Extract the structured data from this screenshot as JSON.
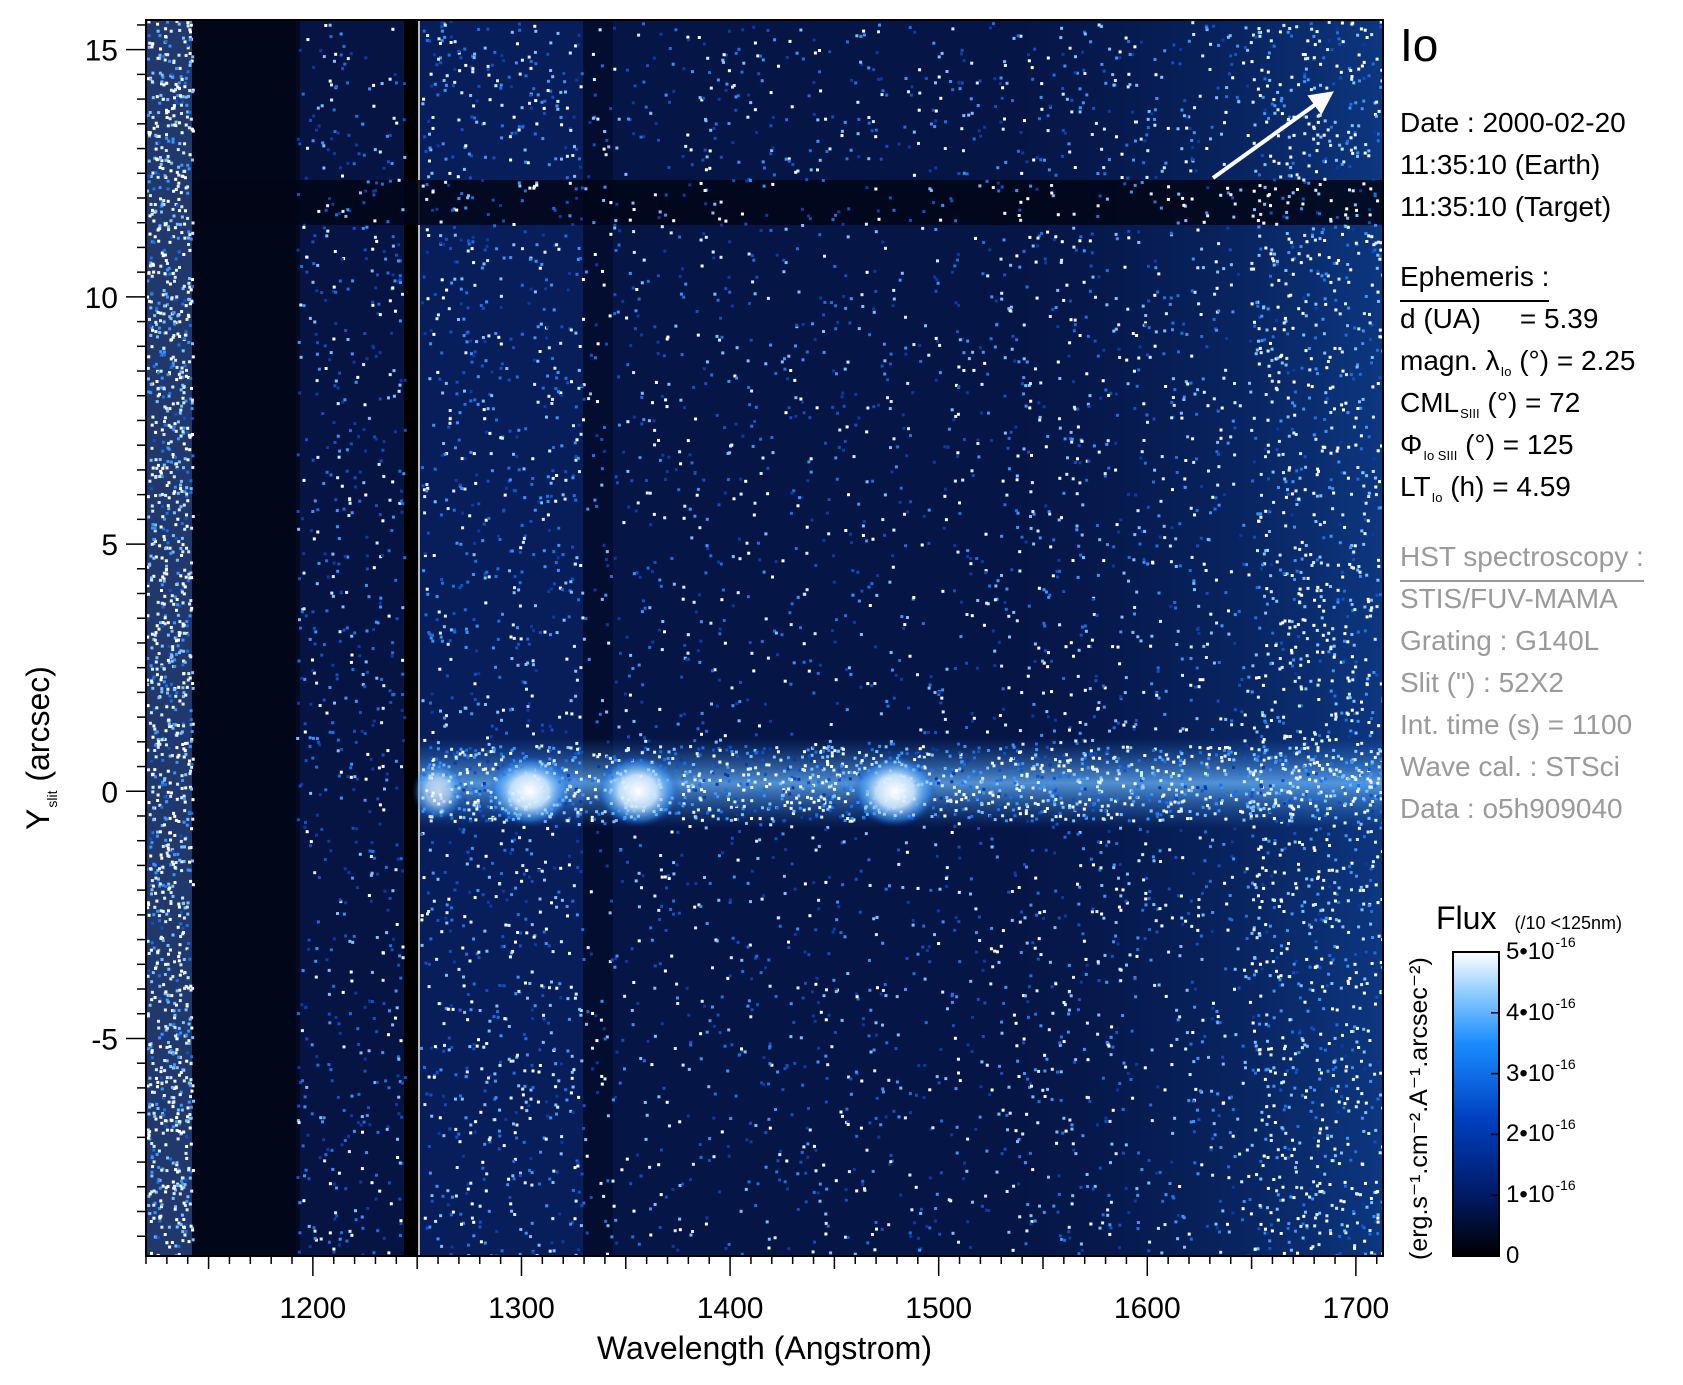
{
  "target": "Io",
  "observation": {
    "date_line": "Date : 2000-02-20",
    "earth_time": "11:35:10 (Earth)",
    "target_time": "11:35:10 (Target)"
  },
  "ephemeris": {
    "title": "Ephemeris :",
    "d_label": "d (UA)",
    "d_value": "= 5.39",
    "magn_label": "magn. λ",
    "magn_sub": "Io",
    "magn_value": "(°)  = 2.25",
    "cml_label": "CML",
    "cml_sub": "SIII",
    "cml_value": "(°) = 72",
    "phi_label": "Φ",
    "phi_sub": "Io SIII",
    "phi_value": "(°) = 125",
    "lt_label": "LT",
    "lt_sub": "Io",
    "lt_value": "(h) = 4.59"
  },
  "hst": {
    "title": "HST spectroscopy :",
    "instrument": "STIS/FUV-MAMA",
    "grating": "Grating : G140L",
    "slit": "Slit (\") : 52X2",
    "int_time": "Int. time (s) = 1100",
    "wave_cal": "Wave cal. : STSci",
    "data": "Data : o5h909040"
  },
  "colorbar": {
    "title": "Flux",
    "note": "(/10 <125nm)",
    "units_label": "(erg.s⁻¹.cm⁻².A⁻¹.arcsec⁻²)",
    "tick_base": "•10",
    "tick_exp": "-16",
    "ticks": [
      {
        "value": "5",
        "frac": 1.0
      },
      {
        "value": "4",
        "frac": 0.8
      },
      {
        "value": "3",
        "frac": 0.6
      },
      {
        "value": "2",
        "frac": 0.4
      },
      {
        "value": "1",
        "frac": 0.2
      },
      {
        "value": "0",
        "frac": 0.0
      }
    ],
    "colors": [
      "#000000",
      "#001a66",
      "#0040c0",
      "#1a8cff",
      "#9ad2ff",
      "#ffffff"
    ]
  },
  "chart_data": {
    "type": "heatmap",
    "xlabel": "Wavelength (Angstrom)",
    "ylabel": "Y",
    "ylabel_sub": "slit",
    "ylabel_suffix": "(arcsec)",
    "xlim": [
      1120,
      1713
    ],
    "ylim": [
      -9.4,
      15.6
    ],
    "xticks": [
      1200,
      1300,
      1400,
      1500,
      1600,
      1700
    ],
    "yticks": [
      15,
      10,
      5,
      0,
      -5
    ],
    "ytick_labels": [
      "15",
      "10",
      "5",
      "0",
      "-5"
    ],
    "xtick_labels": [
      "1200",
      "1300",
      "1400",
      "1500",
      "1600",
      "1700"
    ],
    "emission_band_y": 0,
    "bright_features_x": [
      1304,
      1356,
      1479
    ],
    "direction_arrow": true
  }
}
